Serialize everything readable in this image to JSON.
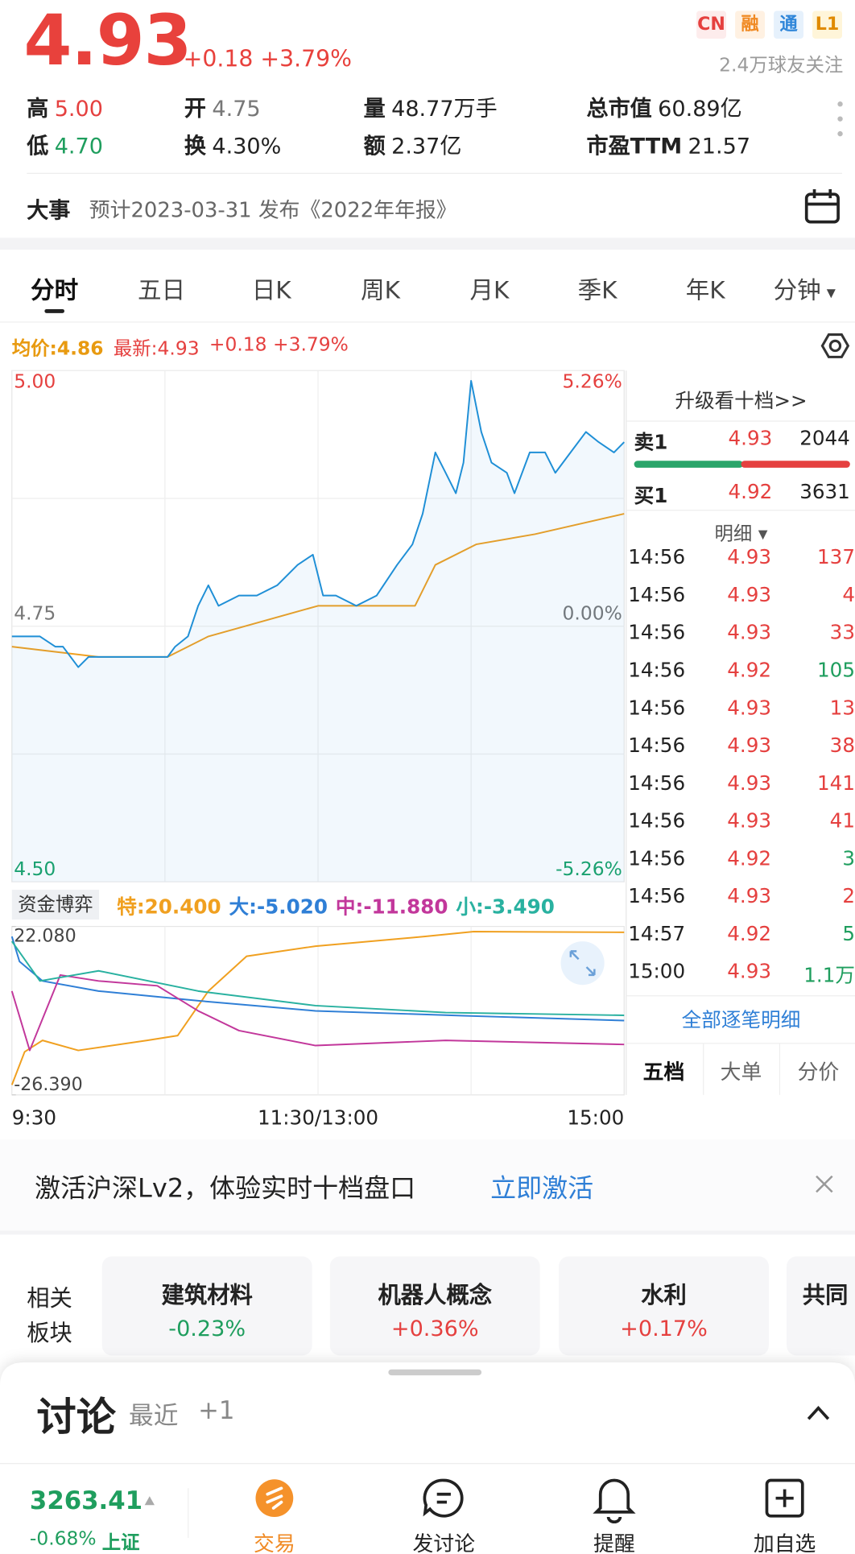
{
  "header": {
    "price": "4.93",
    "change": "+0.18 +3.79%",
    "tags": [
      "CN",
      "融",
      "通",
      "L1"
    ],
    "followers": "2.4万球友关注"
  },
  "stats": [
    [
      {
        "label": "高",
        "value": "5.00",
        "color": "#e5403f"
      },
      {
        "label": "开",
        "value": "4.75",
        "color": "#777777"
      },
      {
        "label": "量",
        "value": "48.77万手",
        "color": "#222222"
      },
      {
        "label": "总市值",
        "value": "60.89亿",
        "color": "#222222"
      }
    ],
    [
      {
        "label": "低",
        "value": "4.70",
        "color": "#1f9e5e"
      },
      {
        "label": "换",
        "value": "4.30%",
        "color": "#222222"
      },
      {
        "label": "额",
        "value": "2.37亿",
        "color": "#222222"
      },
      {
        "label": "市盈TTM",
        "value": "21.57",
        "color": "#222222"
      }
    ]
  ],
  "event": {
    "label": "大事",
    "text": "预计2023-03-31 发布《2022年年报》"
  },
  "tabs": [
    "分时",
    "五日",
    "日K",
    "周K",
    "月K",
    "季K",
    "年K",
    "分钟"
  ],
  "chart_data": [
    {
      "type": "line",
      "change_label": "+0.18 +3.79%",
      "xlim": [
        0,
        240
      ],
      "xgrid": [
        60,
        120,
        180
      ],
      "ylim": [
        4.5,
        5.0
      ],
      "ygrid": [
        4.625,
        4.875
      ],
      "yticks": [
        {
          "value": 5.0,
          "label": "5.00"
        },
        {
          "value": 4.75,
          "label": "4.75"
        },
        {
          "value": 4.5,
          "label": "4.50"
        }
      ],
      "y2lim": [
        -5.26,
        5.26
      ],
      "y2ticks": [
        {
          "value": 5.26,
          "label": "5.26%"
        },
        {
          "value": 0,
          "label": "0.00%"
        },
        {
          "value": -5.26,
          "label": "-5.26%"
        }
      ],
      "grid": true,
      "series": [
        {
          "name": "均价:4.86",
          "color": "#f0a020",
          "x": [
            0,
            34,
            61,
            77,
            120,
            158,
            166,
            182,
            205,
            240
          ],
          "values": [
            4.73,
            4.72,
            4.72,
            4.74,
            4.77,
            4.77,
            4.81,
            4.83,
            4.84,
            4.86
          ]
        },
        {
          "name": "最新:4.93",
          "color": "#1f8fd6",
          "area": true,
          "x": [
            0,
            7,
            11,
            17,
            20,
            26,
            30,
            34,
            42,
            50,
            57,
            61,
            64,
            69,
            73,
            77,
            81,
            89,
            96,
            104,
            112,
            118,
            122,
            127,
            135,
            143,
            151,
            157,
            161,
            166,
            170,
            174,
            177,
            180,
            184,
            188,
            194,
            197,
            203,
            209,
            213,
            219,
            225,
            230,
            236,
            240
          ],
          "values": [
            4.74,
            4.74,
            4.74,
            4.73,
            4.73,
            4.71,
            4.72,
            4.72,
            4.72,
            4.72,
            4.72,
            4.72,
            4.73,
            4.74,
            4.77,
            4.79,
            4.77,
            4.78,
            4.78,
            4.79,
            4.81,
            4.82,
            4.78,
            4.78,
            4.77,
            4.78,
            4.81,
            4.83,
            4.86,
            4.92,
            4.9,
            4.88,
            4.91,
            4.99,
            4.94,
            4.91,
            4.9,
            4.88,
            4.92,
            4.92,
            4.9,
            4.92,
            4.94,
            4.93,
            4.92,
            4.93
          ]
        }
      ]
    },
    {
      "type": "line",
      "title": "资金博弈",
      "xlim": [
        0,
        240
      ],
      "xgrid": [
        60,
        120,
        180
      ],
      "xticks": [
        {
          "value": 0,
          "label": "9:30"
        },
        {
          "value": 120,
          "label": "11:30/13:00"
        },
        {
          "value": 240,
          "label": "15:00"
        }
      ],
      "ylim": [
        -26.39,
        22.08
      ],
      "yticks": [
        {
          "value": 22.08,
          "label": "22.080"
        },
        {
          "value": -26.39,
          "label": "-26.390"
        }
      ],
      "series": [
        {
          "name": "特:20.400",
          "color": "#f0a020",
          "x": [
            0,
            5,
            12,
            26,
            53,
            65,
            77,
            92,
            119,
            162,
            181,
            240
          ],
          "values": [
            -23.5,
            -14,
            -10.7,
            -13.6,
            -10.7,
            -9.3,
            3.5,
            13.5,
            16.4,
            19.2,
            20.6,
            20.4
          ]
        },
        {
          "name": "大:-5.020",
          "color": "#2f7fd6",
          "x": [
            0,
            3,
            12,
            34,
            73,
            119,
            177,
            240
          ],
          "values": [
            19.2,
            12,
            6.4,
            3.5,
            0.7,
            -2.2,
            -3.6,
            -5.02
          ]
        },
        {
          "name": "中:-11.880",
          "color": "#c2379b",
          "x": [
            0,
            7,
            19,
            34,
            57,
            73,
            89,
            119,
            170,
            240
          ],
          "values": [
            3.5,
            -13.6,
            8.1,
            6.4,
            5.0,
            -2.2,
            -7.9,
            -12.2,
            -10.7,
            -11.88
          ]
        },
        {
          "name": "小:-3.490",
          "color": "#29b1a0",
          "x": [
            0,
            11,
            34,
            73,
            119,
            170,
            240
          ],
          "values": [
            17.8,
            6.4,
            9.3,
            3.5,
            -0.7,
            -2.7,
            -3.49
          ]
        }
      ]
    }
  ],
  "order_book": {
    "upgrade": "升级看十档>>",
    "levels": [
      {
        "label": "卖1",
        "price": "4.93",
        "volume": "2044"
      },
      {
        "label": "买1",
        "price": "4.92",
        "volume": "3631"
      }
    ],
    "detail": "明细",
    "trades": [
      {
        "time": "14:56",
        "price": "4.93",
        "volume": "137",
        "color": "#e5403f"
      },
      {
        "time": "14:56",
        "price": "4.93",
        "volume": "4",
        "color": "#e5403f"
      },
      {
        "time": "14:56",
        "price": "4.93",
        "volume": "33",
        "color": "#e5403f"
      },
      {
        "time": "14:56",
        "price": "4.92",
        "volume": "105",
        "color": "#1f9e5e"
      },
      {
        "time": "14:56",
        "price": "4.93",
        "volume": "13",
        "color": "#e5403f"
      },
      {
        "time": "14:56",
        "price": "4.93",
        "volume": "38",
        "color": "#e5403f"
      },
      {
        "time": "14:56",
        "price": "4.93",
        "volume": "141",
        "color": "#e5403f"
      },
      {
        "time": "14:56",
        "price": "4.93",
        "volume": "41",
        "color": "#e5403f"
      },
      {
        "time": "14:56",
        "price": "4.92",
        "volume": "3",
        "color": "#1f9e5e"
      },
      {
        "time": "14:56",
        "price": "4.93",
        "volume": "2",
        "color": "#e5403f"
      },
      {
        "time": "14:57",
        "price": "4.92",
        "volume": "5",
        "color": "#1f9e5e"
      },
      {
        "time": "15:00",
        "price": "4.93",
        "volume": "1.1万",
        "color": "#1f9e5e"
      }
    ],
    "all_trades": "全部逐笔明细",
    "tabs": [
      "五档",
      "大单",
      "分价"
    ]
  },
  "banner": {
    "text": "激活沪深Lv2，体验实时十档盘口",
    "action": "立即激活"
  },
  "sectors": {
    "label": [
      "相关",
      "板块"
    ],
    "items": [
      {
        "name": "建筑材料",
        "change": "-0.23%",
        "color": "#1f9e5e"
      },
      {
        "name": "机器人概念",
        "change": "+0.36%",
        "color": "#e5403f"
      },
      {
        "name": "水利",
        "change": "+0.17%",
        "color": "#e5403f"
      },
      {
        "name": "共同"
      }
    ]
  },
  "discussion": {
    "title": "讨论",
    "recent": "最近",
    "count": "+1"
  },
  "nav": {
    "index_value": "3263.41",
    "index_change": "-0.68%",
    "index_name": "上证",
    "items": [
      "交易",
      "发讨论",
      "提醒",
      "加自选"
    ]
  }
}
